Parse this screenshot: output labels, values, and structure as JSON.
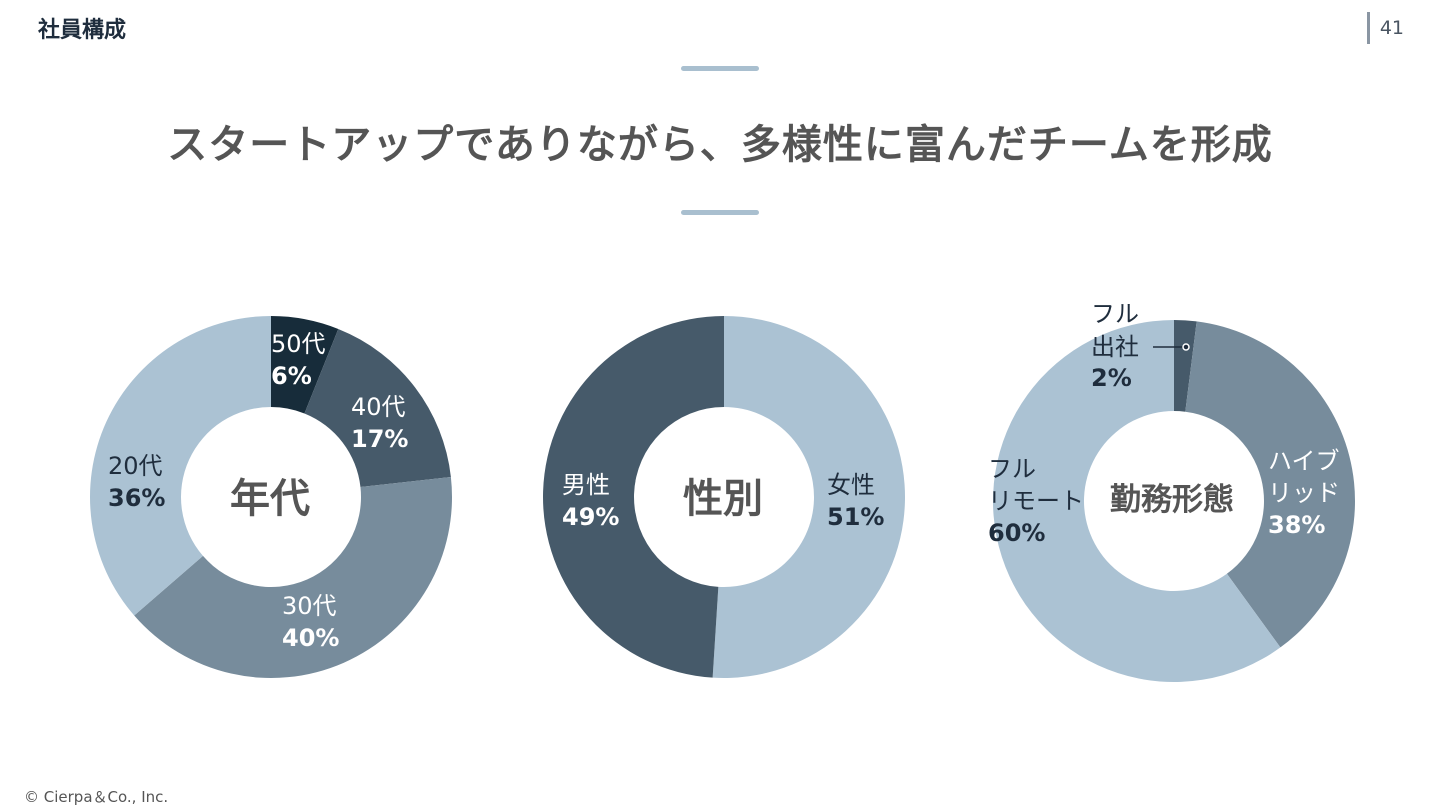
{
  "header": {
    "section": "社員構成",
    "page_number": "41"
  },
  "headline": "スタートアップでありながら、多様性に富んだチームを形成",
  "footer": {
    "copyright": "© Cierpa＆Co., Inc."
  },
  "colors": {
    "darkest": "#172c3a",
    "dark": "#465a6a",
    "mid": "#778c9c",
    "light": "#abc2d3",
    "accent_bar": "#a9bfcf"
  },
  "chart_data": [
    {
      "type": "pie",
      "center_label": "年代",
      "slices": [
        {
          "label": "50代",
          "percent_text": "6%",
          "value": 6,
          "color": "#172c3a"
        },
        {
          "label": "40代",
          "percent_text": "17%",
          "value": 17,
          "color": "#465a6a"
        },
        {
          "label": "30代",
          "percent_text": "40%",
          "value": 40,
          "color": "#778c9c"
        },
        {
          "label": "20代",
          "percent_text": "36%",
          "value": 36,
          "color": "#abc2d3"
        }
      ]
    },
    {
      "type": "pie",
      "center_label": "性別",
      "slices": [
        {
          "label": "女性",
          "percent_text": "51%",
          "value": 51,
          "color": "#abc2d3"
        },
        {
          "label": "男性",
          "percent_text": "49%",
          "value": 49,
          "color": "#465a6a"
        }
      ]
    },
    {
      "type": "pie",
      "center_label": "勤務形態",
      "slices": [
        {
          "label_lines": [
            "フル",
            "出社"
          ],
          "percent_text": "2%",
          "value": 2,
          "color": "#465a6a"
        },
        {
          "label_lines": [
            "ハイブ",
            "リッド"
          ],
          "percent_text": "38%",
          "value": 38,
          "color": "#778c9c"
        },
        {
          "label_lines": [
            "フル",
            "リモート"
          ],
          "percent_text": "60%",
          "value": 60,
          "color": "#abc2d3"
        }
      ]
    }
  ]
}
